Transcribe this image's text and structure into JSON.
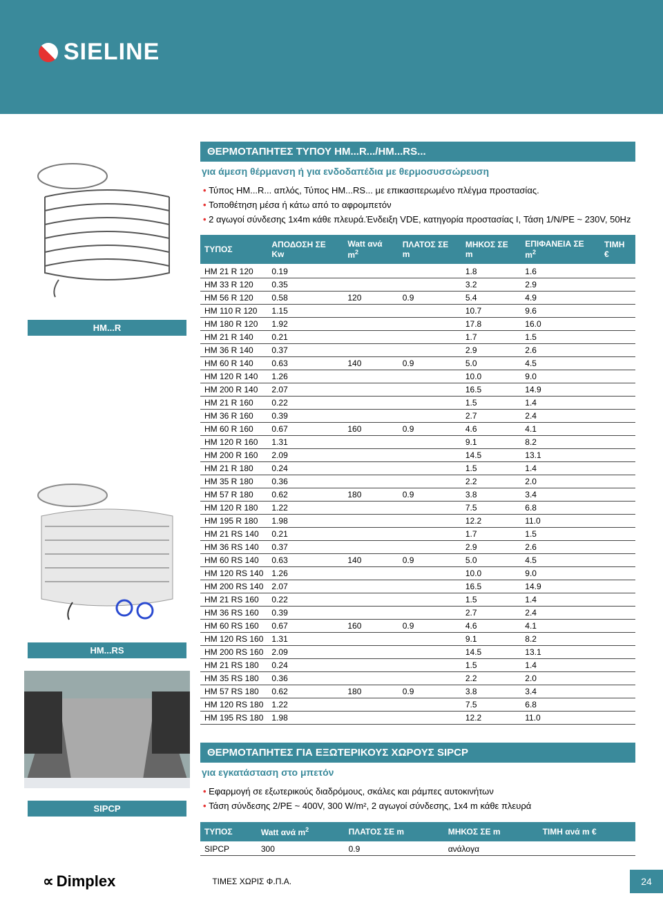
{
  "logo": "SIELINE",
  "section1": {
    "title": "ΘΕΡΜΟΤΑΠΗΤΕΣ ΤΥΠΟΥ HM...R.../HM...RS...",
    "subtitle": "για άμεση θέρμανση ή για ενδοδαπέδια με θερμοσυσσώρευση",
    "bullets": [
      "Τύπος HM...R... απλός, Τύπος HM...RS... με επικασιτερωμένο πλέγμα προστασίας.",
      "Τοποθέτηση μέσα ή κάτω από το αφρομπετόν",
      "2 αγωγοί σύνδεσης 1x4m κάθε πλευρά.Ένδειξη VDE, κατηγορία προστασίας I, Τάση 1/N/PE ~ 230V, 50Hz"
    ],
    "columns": [
      "ΤΥΠΟΣ",
      "ΑΠΟΔΟΣΗ ΣΕ Kw",
      "Watt ανά m²",
      "ΠΛΑΤΟΣ ΣΕ m",
      "ΜΗΚΟΣ ΣΕ m",
      "ΕΠΙΦΑΝΕΙΑ ΣΕ m²",
      "ΤΙΜΗ €"
    ],
    "groups": [
      {
        "watt": "120",
        "width": "0.9",
        "rows": [
          [
            "HM 21 R 120",
            "0.19",
            "1.8",
            "1.6"
          ],
          [
            "HM 33 R 120",
            "0.35",
            "3.2",
            "2.9"
          ],
          [
            "HM 56 R 120",
            "0.58",
            "5.4",
            "4.9"
          ],
          [
            "HM 110 R 120",
            "1.15",
            "10.7",
            "9.6"
          ],
          [
            "HM 180 R 120",
            "1.92",
            "17.8",
            "16.0"
          ]
        ]
      },
      {
        "watt": "140",
        "width": "0.9",
        "rows": [
          [
            "HM 21 R 140",
            "0.21",
            "1.7",
            "1.5"
          ],
          [
            "HM 36 R 140",
            "0.37",
            "2.9",
            "2.6"
          ],
          [
            "HM 60 R 140",
            "0.63",
            "5.0",
            "4.5"
          ],
          [
            "HM 120 R 140",
            "1.26",
            "10.0",
            "9.0"
          ],
          [
            "HM 200 R 140",
            "2.07",
            "16.5",
            "14.9"
          ]
        ]
      },
      {
        "watt": "160",
        "width": "0.9",
        "rows": [
          [
            "HM 21 R 160",
            "0.22",
            "1.5",
            "1.4"
          ],
          [
            "HM 36 R 160",
            "0.39",
            "2.7",
            "2.4"
          ],
          [
            "HM 60 R 160",
            "0.67",
            "4.6",
            "4.1"
          ],
          [
            "HM 120 R 160",
            "1.31",
            "9.1",
            "8.2"
          ],
          [
            "HM 200 R 160",
            "2.09",
            "14.5",
            "13.1"
          ]
        ]
      },
      {
        "watt": "180",
        "width": "0.9",
        "rows": [
          [
            "HM 21 R 180",
            "0.24",
            "1.5",
            "1.4"
          ],
          [
            "HM 35 R 180",
            "0.36",
            "2.2",
            "2.0"
          ],
          [
            "HM 57 R 180",
            "0.62",
            "3.8",
            "3.4"
          ],
          [
            "HM 120 R 180",
            "1.22",
            "7.5",
            "6.8"
          ],
          [
            "HM 195 R 180",
            "1.98",
            "12.2",
            "11.0"
          ]
        ]
      },
      {
        "watt": "140",
        "width": "0.9",
        "rows": [
          [
            "HM 21 RS 140",
            "0.21",
            "1.7",
            "1.5"
          ],
          [
            "HM 36 RS 140",
            "0.37",
            "2.9",
            "2.6"
          ],
          [
            "HM 60 RS 140",
            "0.63",
            "5.0",
            "4.5"
          ],
          [
            "HM 120 RS 140",
            "1.26",
            "10.0",
            "9.0"
          ],
          [
            "HM 200 RS 140",
            "2.07",
            "16.5",
            "14.9"
          ]
        ]
      },
      {
        "watt": "160",
        "width": "0.9",
        "rows": [
          [
            "HM 21 RS 160",
            "0.22",
            "1.5",
            "1.4"
          ],
          [
            "HM 36 RS 160",
            "0.39",
            "2.7",
            "2.4"
          ],
          [
            "HM 60 RS 160",
            "0.67",
            "4.6",
            "4.1"
          ],
          [
            "HM 120 RS 160",
            "1.31",
            "9.1",
            "8.2"
          ],
          [
            "HM 200 RS 160",
            "2.09",
            "14.5",
            "13.1"
          ]
        ]
      },
      {
        "watt": "180",
        "width": "0.9",
        "rows": [
          [
            "HM 21 RS 180",
            "0.24",
            "1.5",
            "1.4"
          ],
          [
            "HM 35 RS 180",
            "0.36",
            "2.2",
            "2.0"
          ],
          [
            "HM 57 RS 180",
            "0.62",
            "3.8",
            "3.4"
          ],
          [
            "HM 120 RS 180",
            "1.22",
            "7.5",
            "6.8"
          ],
          [
            "HM 195 RS 180",
            "1.98",
            "12.2",
            "11.0"
          ]
        ]
      }
    ]
  },
  "side_labels": {
    "hmr": "HM...R",
    "hmrs": "HM...RS",
    "sipcp": "SIPCP"
  },
  "section2": {
    "title": "ΘΕΡΜΟΤΑΠΗΤΕΣ ΓΙΑ ΕΞΩΤΕΡΙΚΟΥΣ ΧΩΡΟΥΣ SIPCP",
    "subtitle": "για εγκατάσταση στο μπετόν",
    "bullets": [
      "Εφαρμογή σε εξωτερικούς διαδρόμους, σκάλες και ράμπες αυτοκινήτων",
      "Τάση σύνδεσης 2/PE ~ 400V, 300 W/m², 2 αγωγοί σύνδεσης, 1x4 m κάθε πλευρά"
    ],
    "columns": [
      "ΤΥΠΟΣ",
      "Watt ανά m²",
      "ΠΛΑΤΟΣ ΣΕ m",
      "ΜΗΚΟΣ ΣΕ m",
      "ΤΙΜΗ ανά m €"
    ],
    "row": [
      "SIPCP",
      "300",
      "0.9",
      "ανάλογα",
      ""
    ]
  },
  "footer": {
    "brand": "Dimplex",
    "note": "ΤΙΜΕΣ ΧΩΡΙΣ Φ.Π.Α.",
    "page": "24"
  },
  "colors": {
    "brand": "#3a8a9b",
    "accent": "#e63232",
    "rule": "#444"
  }
}
